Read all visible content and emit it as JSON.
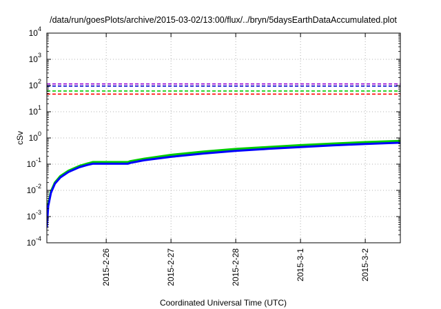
{
  "chart_data": {
    "type": "line",
    "title": "/data/run/goesPlots/archive/2015-03-02/13:00/flux/../bryn/5daysEarthDataAccumulated.plot",
    "xlabel": "Coordinated Universal Time (UTC)",
    "ylabel": "cSv",
    "y_scale": "log",
    "ylim": [
      0.0001,
      10000
    ],
    "xlim": [
      "2015-02-25 02:00",
      "2015-03-02 13:00"
    ],
    "grid": true,
    "legend": "none",
    "x_ticks": [
      "2015-2-26",
      "2015-2-27",
      "2015-2-28",
      "2015-3-1",
      "2015-3-2"
    ],
    "y_ticks": [
      {
        "base": "10",
        "exp": "-4",
        "value": 0.0001
      },
      {
        "base": "10",
        "exp": "-3",
        "value": 0.001
      },
      {
        "base": "10",
        "exp": "-2",
        "value": 0.01
      },
      {
        "base": "10",
        "exp": "-1",
        "value": 0.1
      },
      {
        "base": "10",
        "exp": "0",
        "value": 1
      },
      {
        "base": "10",
        "exp": "1",
        "value": 10
      },
      {
        "base": "10",
        "exp": "2",
        "value": 100
      },
      {
        "base": "10",
        "exp": "3",
        "value": 1000
      },
      {
        "base": "10",
        "exp": "4",
        "value": 10000
      }
    ],
    "thresholds": [
      {
        "value": 115,
        "color": "#9400d3"
      },
      {
        "value": 95,
        "color": "#0000cc"
      },
      {
        "value": 62,
        "color": "#00cc00"
      },
      {
        "value": 47,
        "color": "#ff0000"
      }
    ],
    "series": [
      {
        "color": "#00cc00",
        "points": [
          [
            "2015-02-25 02:00",
            0.0008
          ],
          [
            "2015-02-25 02:30",
            0.003
          ],
          [
            "2015-02-25 03:30",
            0.009
          ],
          [
            "2015-02-25 05:00",
            0.02
          ],
          [
            "2015-02-25 07:00",
            0.035
          ],
          [
            "2015-02-25 10:00",
            0.056
          ],
          [
            "2015-02-25 14:00",
            0.085
          ],
          [
            "2015-02-25 17:00",
            0.105
          ],
          [
            "2015-02-25 19:00",
            0.12
          ],
          [
            "2015-02-26 08:00",
            0.12
          ],
          [
            "2015-02-26 09:00",
            0.13
          ],
          [
            "2015-02-26 14:00",
            0.16
          ],
          [
            "2015-02-27 00:00",
            0.225
          ],
          [
            "2015-02-27 12:00",
            0.3
          ],
          [
            "2015-02-28 00:00",
            0.38
          ],
          [
            "2015-02-28 12:00",
            0.45
          ],
          [
            "2015-03-01 00:00",
            0.53
          ],
          [
            "2015-03-01 12:00",
            0.61
          ],
          [
            "2015-03-02 00:00",
            0.69
          ],
          [
            "2015-03-02 13:00",
            0.77
          ]
        ]
      },
      {
        "color": "#0000ff",
        "points": [
          [
            "2015-02-25 02:00",
            0.0004
          ],
          [
            "2015-02-25 02:30",
            0.0025
          ],
          [
            "2015-02-25 03:30",
            0.008
          ],
          [
            "2015-02-25 05:00",
            0.018
          ],
          [
            "2015-02-25 07:00",
            0.031
          ],
          [
            "2015-02-25 10:00",
            0.05
          ],
          [
            "2015-02-25 14:00",
            0.076
          ],
          [
            "2015-02-25 17:00",
            0.093
          ],
          [
            "2015-02-25 19:00",
            0.104
          ],
          [
            "2015-02-26 08:00",
            0.104
          ],
          [
            "2015-02-26 09:00",
            0.112
          ],
          [
            "2015-02-26 14:00",
            0.14
          ],
          [
            "2015-02-27 00:00",
            0.19
          ],
          [
            "2015-02-27 12:00",
            0.255
          ],
          [
            "2015-02-28 00:00",
            0.32
          ],
          [
            "2015-02-28 12:00",
            0.385
          ],
          [
            "2015-03-01 00:00",
            0.45
          ],
          [
            "2015-03-01 12:00",
            0.52
          ],
          [
            "2015-03-02 00:00",
            0.59
          ],
          [
            "2015-03-02 13:00",
            0.66
          ]
        ]
      }
    ]
  }
}
